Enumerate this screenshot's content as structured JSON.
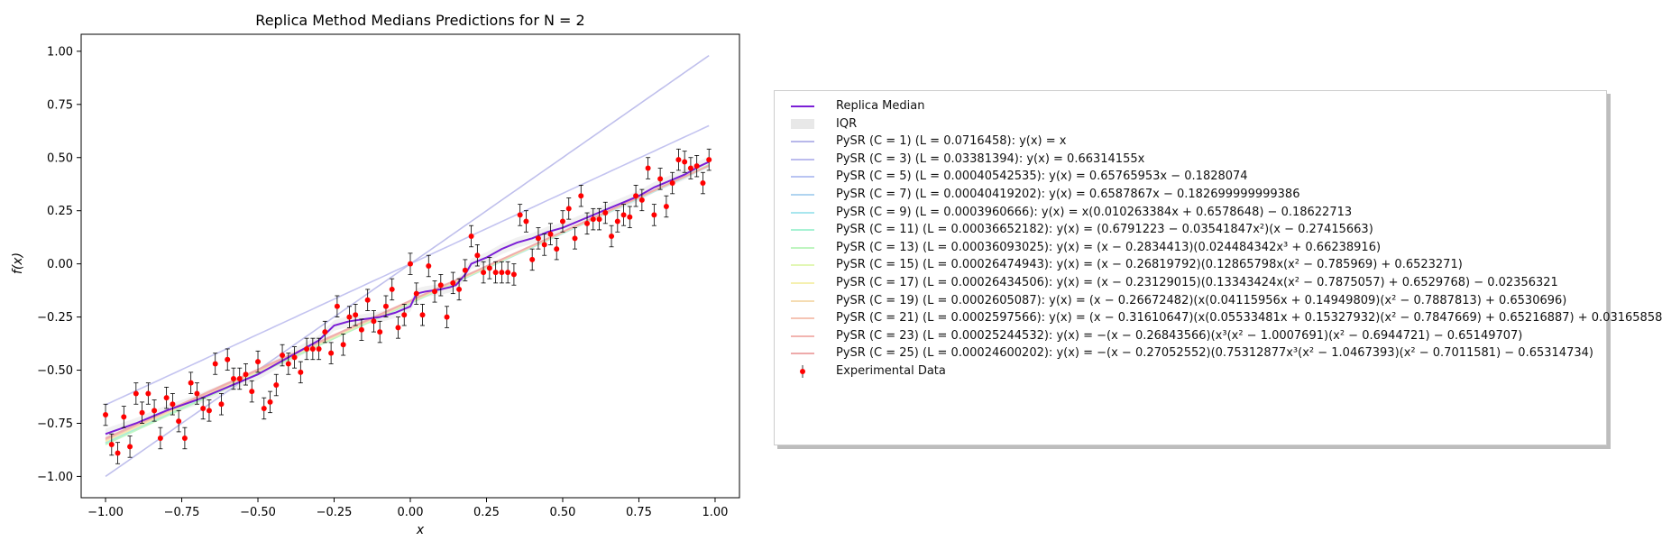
{
  "chart_data": {
    "type": "line",
    "title": "Replica Method Medians Predictions for N = 2",
    "xlabel": "x",
    "ylabel": "f(x)",
    "xlim": [
      -1.08,
      1.08
    ],
    "ylim": [
      -1.1,
      1.08
    ],
    "xticks": [
      -1.0,
      -0.75,
      -0.5,
      -0.25,
      0.0,
      0.25,
      0.5,
      0.75,
      1.0
    ],
    "xtick_labels": [
      "−1.00",
      "−0.75",
      "−0.50",
      "−0.25",
      "0.00",
      "0.25",
      "0.50",
      "0.75",
      "1.00"
    ],
    "yticks": [
      1.0,
      0.75,
      0.5,
      0.25,
      0.0,
      -0.25,
      -0.5,
      -0.75,
      -1.0
    ],
    "ytick_labels": [
      "1.00",
      "0.75",
      "0.50",
      "0.25",
      "0.00",
      "−0.25",
      "−0.50",
      "−0.75",
      "−1.00"
    ],
    "grid": false,
    "legend_position": "right",
    "median": {
      "name": "Replica Median",
      "color": "#7b1fd6",
      "x": [
        -1.0,
        -0.9,
        -0.8,
        -0.7,
        -0.6,
        -0.5,
        -0.4,
        -0.3,
        -0.25,
        -0.2,
        -0.15,
        -0.1,
        -0.05,
        0.0,
        0.02,
        0.05,
        0.1,
        0.13,
        0.15,
        0.18,
        0.2,
        0.25,
        0.3,
        0.35,
        0.4,
        0.45,
        0.5,
        0.55,
        0.6,
        0.65,
        0.7,
        0.75,
        0.8,
        0.85,
        0.9,
        0.95,
        0.98
      ],
      "y": [
        -0.8,
        -0.75,
        -0.69,
        -0.64,
        -0.58,
        -0.52,
        -0.44,
        -0.36,
        -0.29,
        -0.27,
        -0.26,
        -0.25,
        -0.23,
        -0.2,
        -0.14,
        -0.13,
        -0.12,
        -0.11,
        -0.1,
        -0.05,
        0.0,
        0.03,
        0.07,
        0.1,
        0.12,
        0.15,
        0.17,
        0.2,
        0.23,
        0.26,
        0.29,
        0.32,
        0.36,
        0.39,
        0.42,
        0.46,
        0.48
      ]
    },
    "iqr_label": "IQR",
    "series": [
      {
        "name": "PySR (C = 1) (L = 0.0716458): y(x) = x",
        "color": "#b8b8ea",
        "kind": "linear",
        "coef": [
          1.0,
          0.0
        ]
      },
      {
        "name": "PySR (C = 3) (L = 0.03381394): y(x) = 0.66314155x",
        "color": "#bcbcee",
        "kind": "linear",
        "coef": [
          0.66314155,
          0.0
        ]
      },
      {
        "name": "PySR (C = 5) (L = 0.00040542535): y(x) = 0.65765953x − 0.1828074",
        "color": "#b9c4f2",
        "kind": "linear",
        "coef": [
          0.65765953,
          -0.1828074
        ]
      },
      {
        "name": "PySR (C = 7) (L = 0.00040419202): y(x) = 0.6587867x − 0.182699999999386",
        "color": "#b0d4f0",
        "kind": "linear",
        "coef": [
          0.6587867,
          -0.1827
        ]
      },
      {
        "name": "PySR (C = 9) (L = 0.0003960666): y(x) = x(0.010263384x + 0.6578648) − 0.18622713",
        "color": "#a8e6ee",
        "kind": "linear",
        "coef": [
          0.6578648,
          -0.18622713
        ]
      },
      {
        "name": "PySR (C = 11) (L = 0.00036652182): y(x) = (0.6791223 − 0.03541847x²)(x − 0.27415663)",
        "color": "#a8f2d4",
        "kind": "linear",
        "coef": [
          0.66,
          -0.185
        ]
      },
      {
        "name": "PySR (C = 13) (L = 0.00036093025): y(x) = (x − 0.2834413)(0.024484342x³ + 0.66238916)",
        "color": "#bff5c0",
        "kind": "linear",
        "coef": [
          0.665,
          -0.185
        ]
      },
      {
        "name": "PySR (C = 15) (L = 0.00026474943): y(x) = (x − 0.26819792)(0.12865798x(x² − 0.785969) + 0.6523271)",
        "color": "#e2f7b4",
        "kind": "linear",
        "coef": [
          0.655,
          -0.18
        ]
      },
      {
        "name": "PySR (C = 17) (L = 0.00026434506): y(x) = (x − 0.23129015)(0.13343424x(x² − 0.7875057) + 0.6529768) − 0.02356321",
        "color": "#f5f0b0",
        "kind": "linear",
        "coef": [
          0.655,
          -0.18
        ]
      },
      {
        "name": "PySR (C = 19) (L = 0.0002605087): y(x) = (x − 0.26672482)(x(0.04115956x + 0.14949809)(x² − 0.7887813) + 0.6530696)",
        "color": "#f5dcb2",
        "kind": "linear",
        "coef": [
          0.652,
          -0.178
        ]
      },
      {
        "name": "PySR (C = 21) (L = 0.0002597566): y(x) = (x − 0.31610647)(x(0.05533481x + 0.15327932)(x² − 0.7847669) + 0.65216887) + 0.03165858",
        "color": "#f5c4b4",
        "kind": "linear",
        "coef": [
          0.65,
          -0.175
        ]
      },
      {
        "name": "PySR (C = 23) (L = 0.00025244532): y(x) = −(x − 0.26843566)(x³(x² − 1.0007691)(x² − 0.6944721) − 0.65149707)",
        "color": "#f2b4b0",
        "kind": "linear",
        "coef": [
          0.65,
          -0.175
        ]
      },
      {
        "name": "PySR (C = 25) (L = 0.00024600202): y(x) = −(x − 0.27052552)(0.75312877x³(x² − 1.0467393)(x² − 0.7011581) − 0.65314734)",
        "color": "#eeaaaa",
        "kind": "linear",
        "coef": [
          0.648,
          -0.172
        ]
      }
    ],
    "data_label": "Experimental Data",
    "data_color": "#ff0000",
    "data": {
      "x": [
        -1.0,
        -0.98,
        -0.96,
        -0.94,
        -0.92,
        -0.9,
        -0.88,
        -0.86,
        -0.84,
        -0.82,
        -0.8,
        -0.78,
        -0.76,
        -0.74,
        -0.72,
        -0.7,
        -0.68,
        -0.66,
        -0.64,
        -0.62,
        -0.6,
        -0.58,
        -0.56,
        -0.54,
        -0.52,
        -0.5,
        -0.48,
        -0.46,
        -0.44,
        -0.42,
        -0.4,
        -0.38,
        -0.36,
        -0.34,
        -0.32,
        -0.3,
        -0.28,
        -0.26,
        -0.24,
        -0.22,
        -0.2,
        -0.18,
        -0.16,
        -0.14,
        -0.12,
        -0.1,
        -0.08,
        -0.06,
        -0.04,
        -0.02,
        0.0,
        0.02,
        0.04,
        0.06,
        0.08,
        0.1,
        0.12,
        0.14,
        0.16,
        0.18,
        0.2,
        0.22,
        0.24,
        0.26,
        0.28,
        0.3,
        0.32,
        0.34,
        0.36,
        0.38,
        0.4,
        0.42,
        0.44,
        0.46,
        0.48,
        0.5,
        0.52,
        0.54,
        0.56,
        0.58,
        0.6,
        0.62,
        0.64,
        0.66,
        0.68,
        0.7,
        0.72,
        0.74,
        0.76,
        0.78,
        0.8,
        0.82,
        0.84,
        0.86,
        0.88,
        0.9,
        0.92,
        0.94,
        0.96,
        0.98
      ],
      "y": [
        -0.71,
        -0.85,
        -0.89,
        -0.72,
        -0.86,
        -0.61,
        -0.7,
        -0.61,
        -0.69,
        -0.82,
        -0.63,
        -0.66,
        -0.74,
        -0.82,
        -0.56,
        -0.61,
        -0.68,
        -0.69,
        -0.47,
        -0.66,
        -0.45,
        -0.54,
        -0.54,
        -0.52,
        -0.6,
        -0.46,
        -0.68,
        -0.65,
        -0.57,
        -0.43,
        -0.47,
        -0.44,
        -0.51,
        -0.4,
        -0.4,
        -0.4,
        -0.32,
        -0.42,
        -0.2,
        -0.38,
        -0.25,
        -0.24,
        -0.31,
        -0.17,
        -0.27,
        -0.32,
        -0.2,
        -0.12,
        -0.3,
        -0.24,
        0.0,
        -0.14,
        -0.24,
        -0.01,
        -0.13,
        -0.1,
        -0.25,
        -0.09,
        -0.12,
        -0.03,
        0.13,
        0.04,
        -0.04,
        -0.02,
        -0.04,
        -0.04,
        -0.04,
        -0.05,
        0.23,
        0.2,
        0.02,
        0.12,
        0.09,
        0.14,
        0.07,
        0.2,
        0.26,
        0.12,
        0.32,
        0.19,
        0.21,
        0.21,
        0.24,
        0.13,
        0.2,
        0.23,
        0.22,
        0.32,
        0.3,
        0.45,
        0.23,
        0.4,
        0.27,
        0.38,
        0.49,
        0.48,
        0.45,
        0.46,
        0.38,
        0.49
      ],
      "yerr": 0.05
    }
  }
}
